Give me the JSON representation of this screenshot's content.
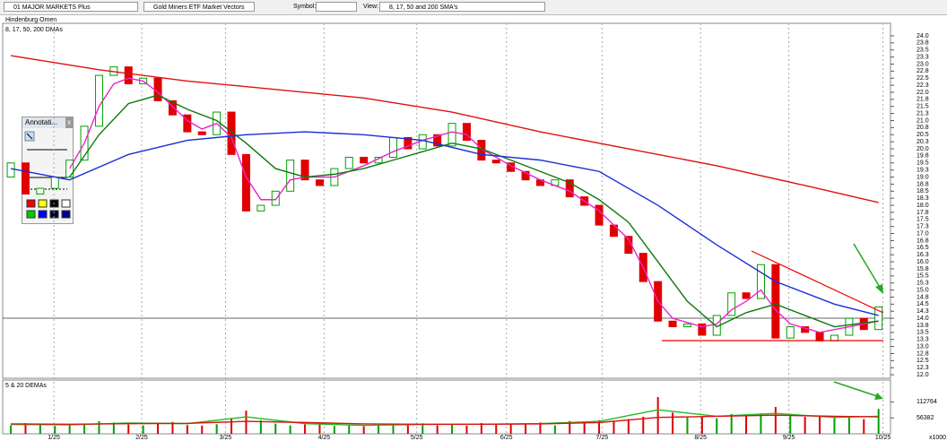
{
  "ui": {
    "workspace": "01 MAJOR MARKETS Plus",
    "list": "Gold Miners ETF Market Vectors",
    "symbol_label": "Symbol:",
    "view_label": "View:",
    "view": "8, 17, 50 and 200 SMA's",
    "palette_title": "Annotati...",
    "palette_close": "x"
  },
  "chart_data": {
    "type": "candlestick",
    "title": "Hindenburg Omen",
    "subtitle": "8, 17, 50, 200 DMAs",
    "xlim": [
      -0.43,
      59.63
    ],
    "ylim": [
      11.94,
      24.38
    ],
    "xticks": [
      {
        "value": 2.93,
        "label": "1/25"
      },
      {
        "value": 8.9,
        "label": "2/25"
      },
      {
        "value": 14.6,
        "label": "3/25"
      },
      {
        "value": 21.3,
        "label": "4/25"
      },
      {
        "value": 27.6,
        "label": "5/25"
      },
      {
        "value": 33.7,
        "label": "6/25"
      },
      {
        "value": 40.2,
        "label": "7/25"
      },
      {
        "value": 46.9,
        "label": "8/25"
      },
      {
        "value": 52.9,
        "label": "9/25"
      },
      {
        "value": 59.3,
        "label": "10/25"
      }
    ],
    "yticks": [
      {
        "value": 24,
        "label": "24.0"
      },
      {
        "value": 23.75,
        "label": "23.8"
      },
      {
        "value": 23.5,
        "label": "23.5"
      },
      {
        "value": 23.25,
        "label": "23.3"
      },
      {
        "value": 23,
        "label": "23.0"
      },
      {
        "value": 22.75,
        "label": "22.8"
      },
      {
        "value": 22.5,
        "label": "22.5"
      },
      {
        "value": 22.25,
        "label": "22.3"
      },
      {
        "value": 22,
        "label": "22.0"
      },
      {
        "value": 21.75,
        "label": "21.8"
      },
      {
        "value": 21.5,
        "label": "21.5"
      },
      {
        "value": 21.25,
        "label": "21.3"
      },
      {
        "value": 21,
        "label": "21.0"
      },
      {
        "value": 20.75,
        "label": "20.8"
      },
      {
        "value": 20.5,
        "label": "20.5"
      },
      {
        "value": 20.25,
        "label": "20.3"
      },
      {
        "value": 20,
        "label": "20.0"
      },
      {
        "value": 19.75,
        "label": "19.8"
      },
      {
        "value": 19.5,
        "label": "19.5"
      },
      {
        "value": 19.25,
        "label": "19.3"
      },
      {
        "value": 19,
        "label": "19.0"
      },
      {
        "value": 18.75,
        "label": "18.8"
      },
      {
        "value": 18.5,
        "label": "18.5"
      },
      {
        "value": 18.25,
        "label": "18.3"
      },
      {
        "value": 18,
        "label": "18.0"
      },
      {
        "value": 17.75,
        "label": "17.8"
      },
      {
        "value": 17.5,
        "label": "17.5"
      },
      {
        "value": 17.25,
        "label": "17.3"
      },
      {
        "value": 17,
        "label": "17.0"
      },
      {
        "value": 16.75,
        "label": "16.8"
      },
      {
        "value": 16.5,
        "label": "16.5"
      },
      {
        "value": 16.25,
        "label": "16.3"
      },
      {
        "value": 16,
        "label": "16.0"
      },
      {
        "value": 15.75,
        "label": "15.8"
      },
      {
        "value": 15.5,
        "label": "15.5"
      },
      {
        "value": 15.25,
        "label": "15.3"
      },
      {
        "value": 15,
        "label": "15.0"
      },
      {
        "value": 14.75,
        "label": "14.8"
      },
      {
        "value": 14.5,
        "label": "14.5"
      },
      {
        "value": 14.25,
        "label": "14.3"
      },
      {
        "value": 14,
        "label": "14.0"
      },
      {
        "value": 13.75,
        "label": "13.8"
      },
      {
        "value": 13.5,
        "label": "13.5"
      },
      {
        "value": 13.25,
        "label": "13.3"
      },
      {
        "value": 13,
        "label": "13.0"
      },
      {
        "value": 12.75,
        "label": "12.8"
      },
      {
        "value": 12.5,
        "label": "12.5"
      },
      {
        "value": 12.25,
        "label": "12.3"
      },
      {
        "value": 12,
        "label": "12.0"
      }
    ],
    "up_color": "#00a000",
    "down_color": "#e00000",
    "open": [
      19.0,
      19.5,
      18.4,
      18.6,
      19.0,
      19.6,
      20.8,
      22.6,
      22.9,
      22.3,
      22.5,
      21.7,
      21.2,
      20.6,
      20.5,
      21.3,
      19.8,
      17.8,
      18.0,
      18.5,
      19.6,
      18.9,
      18.7,
      19.3,
      19.7,
      19.5,
      19.7,
      20.4,
      20.0,
      20.5,
      20.1,
      20.9,
      20.3,
      19.6,
      19.5,
      19.2,
      18.9,
      18.7,
      18.9,
      18.3,
      18.0,
      17.3,
      16.9,
      16.3,
      15.3,
      13.9,
      13.7,
      13.8,
      13.4,
      14.1,
      14.9,
      14.7,
      15.9,
      13.3,
      13.7,
      13.5,
      13.2,
      13.4,
      14.0,
      13.6
    ],
    "close": [
      19.5,
      18.4,
      18.6,
      19.0,
      19.6,
      20.8,
      22.6,
      22.9,
      22.3,
      22.5,
      21.7,
      21.2,
      20.6,
      20.5,
      21.3,
      19.8,
      17.8,
      18.0,
      18.5,
      19.6,
      18.9,
      18.7,
      19.3,
      19.7,
      19.5,
      19.7,
      20.4,
      20.0,
      20.5,
      20.1,
      20.9,
      20.3,
      19.6,
      19.5,
      19.2,
      18.9,
      18.7,
      18.9,
      18.3,
      18.0,
      17.3,
      16.9,
      16.3,
      15.3,
      13.9,
      13.7,
      13.8,
      13.4,
      14.1,
      14.9,
      14.7,
      15.9,
      13.3,
      13.7,
      13.5,
      13.2,
      13.4,
      14.0,
      13.6,
      14.4
    ],
    "series": [
      {
        "color": "#ee22cc",
        "x": [
          4,
          5,
          6,
          7,
          8,
          9,
          10,
          11,
          12,
          13,
          14,
          15,
          16,
          17,
          18,
          19,
          20,
          22,
          24,
          26,
          28,
          30,
          31,
          32,
          34,
          36,
          38,
          40,
          42,
          43,
          44,
          45,
          47,
          48,
          49,
          50,
          51,
          52,
          53,
          55,
          57,
          59
        ],
        "values": [
          19.3,
          20.2,
          21.5,
          22.3,
          22.5,
          22.4,
          22.0,
          21.5,
          21.0,
          20.7,
          20.9,
          20.4,
          19.0,
          18.2,
          18.2,
          18.9,
          19.0,
          19.0,
          19.4,
          19.9,
          20.3,
          20.6,
          20.5,
          20.0,
          19.4,
          18.9,
          18.5,
          17.8,
          16.8,
          15.8,
          14.6,
          14.0,
          13.7,
          13.8,
          14.3,
          14.6,
          15.0,
          14.3,
          13.8,
          13.5,
          13.7,
          13.9
        ]
      },
      {
        "color": "#0a7a0a",
        "x": [
          4,
          6,
          8,
          10,
          12,
          14,
          16,
          18,
          20,
          22,
          24,
          26,
          28,
          30,
          32,
          34,
          36,
          38,
          40,
          42,
          44,
          46,
          48,
          50,
          52,
          54,
          56,
          59
        ],
        "values": [
          19.0,
          20.5,
          21.6,
          21.9,
          21.4,
          21.0,
          20.2,
          19.3,
          19.0,
          19.1,
          19.3,
          19.6,
          19.9,
          20.2,
          20.0,
          19.6,
          19.2,
          18.8,
          18.2,
          17.4,
          16.0,
          14.6,
          13.7,
          14.2,
          14.5,
          14.1,
          13.7,
          13.9
        ]
      },
      {
        "color": "#1a2ed8",
        "x": [
          0,
          4,
          8,
          12,
          16,
          20,
          24,
          28,
          32,
          36,
          40,
          44,
          48,
          52,
          56,
          59
        ],
        "values": [
          19.3,
          18.9,
          19.8,
          20.3,
          20.5,
          20.6,
          20.5,
          20.3,
          19.8,
          19.6,
          19.2,
          18.0,
          16.6,
          15.3,
          14.5,
          14.1
        ]
      },
      {
        "color": "#dd1111",
        "x": [
          0,
          6,
          12,
          18,
          24,
          30,
          36,
          42,
          48,
          54,
          59
        ],
        "values": [
          23.3,
          22.8,
          22.4,
          22.1,
          21.8,
          21.3,
          20.6,
          20.0,
          19.4,
          18.7,
          18.1
        ]
      }
    ],
    "volume": {
      "subtitle": "5 & 20 DEMAs",
      "unit_label": "x1000",
      "ylim": [
        0,
        190000
      ],
      "yticks": [
        56382,
        112764
      ],
      "values": [
        30000,
        38000,
        35000,
        28000,
        32000,
        36000,
        45000,
        40000,
        33000,
        30000,
        35000,
        42000,
        31000,
        29000,
        34000,
        55000,
        82000,
        48000,
        36000,
        30000,
        33000,
        39000,
        28000,
        31000,
        27000,
        30000,
        35000,
        33000,
        37000,
        30000,
        34000,
        29000,
        38000,
        32000,
        36000,
        33000,
        40000,
        30000,
        45000,
        42000,
        48000,
        44000,
        52000,
        60000,
        130000,
        75000,
        58000,
        62000,
        55000,
        70000,
        65000,
        72000,
        95000,
        68000,
        60000,
        64000,
        55000,
        58000,
        52000,
        88000
      ],
      "series": [
        {
          "color": "#22bb22",
          "x": [
            0,
            4,
            8,
            12,
            16,
            20,
            24,
            28,
            32,
            36,
            40,
            44,
            48,
            52,
            56,
            59
          ],
          "values": [
            33000,
            32000,
            38000,
            36000,
            60000,
            36000,
            30000,
            33000,
            34000,
            36000,
            44000,
            85000,
            62000,
            72000,
            58000,
            62000
          ]
        },
        {
          "color": "#dd1111",
          "x": [
            0,
            4,
            8,
            12,
            16,
            20,
            24,
            28,
            32,
            36,
            40,
            44,
            48,
            52,
            56,
            59
          ],
          "values": [
            35000,
            34000,
            36000,
            37000,
            44000,
            40000,
            35000,
            34000,
            34000,
            35000,
            40000,
            58000,
            62000,
            66000,
            62000,
            60000
          ]
        }
      ]
    }
  }
}
